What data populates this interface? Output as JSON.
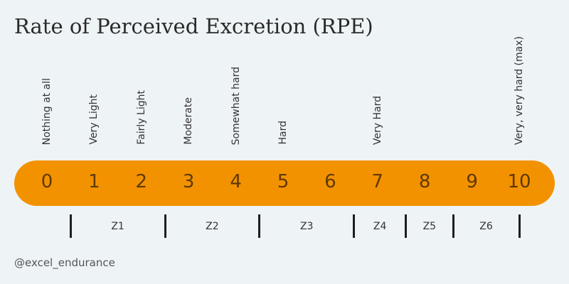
{
  "title": "Rate of Perceived Excretion (RPE)",
  "descriptors": [
    {
      "label": "Nothing at all",
      "at": 0
    },
    {
      "label": "Very Light",
      "at": 1
    },
    {
      "label": "Fairly Light",
      "at": 2
    },
    {
      "label": "Moderate",
      "at": 3
    },
    {
      "label": "Somewhat hard",
      "at": 4
    },
    {
      "label": "Hard",
      "at": 5
    },
    {
      "label": "Very Hard",
      "at": 7
    },
    {
      "label": "Very, very hard (max)",
      "at": 10
    }
  ],
  "scale": [
    "0",
    "1",
    "2",
    "3",
    "4",
    "5",
    "6",
    "7",
    "8",
    "9",
    "10"
  ],
  "zones": [
    {
      "label": "Z1",
      "from": 0.5,
      "to": 2.5
    },
    {
      "label": "Z2",
      "from": 2.5,
      "to": 4.5
    },
    {
      "label": "Z3",
      "from": 4.5,
      "to": 6.5
    },
    {
      "label": "Z4",
      "from": 6.5,
      "to": 7.6
    },
    {
      "label": "Z5",
      "from": 7.6,
      "to": 8.6
    },
    {
      "label": "Z6",
      "from": 8.6,
      "to": 10
    }
  ],
  "colors": {
    "bar": "#f39200",
    "background": "#eef3f6"
  },
  "handle": "@excel_endurance"
}
